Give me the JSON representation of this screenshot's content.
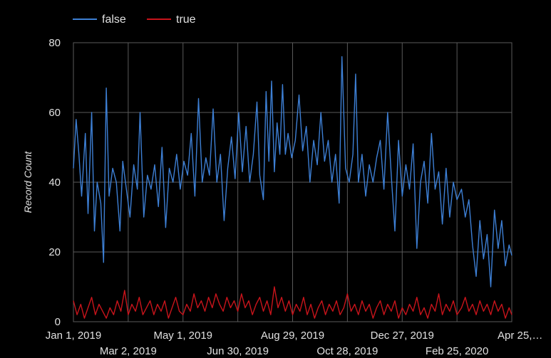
{
  "chart_data": {
    "type": "line",
    "title": "",
    "xlabel": "",
    "ylabel": "Record Count",
    "ylim": [
      0,
      80
    ],
    "yticks": [
      "0",
      "20",
      "40",
      "60",
      "80"
    ],
    "xlim": [
      "2019-01-01",
      "2020-04-25"
    ],
    "xticks": [
      {
        "date": "2019-01-01",
        "label": "Jan 1, 2019",
        "row": 0
      },
      {
        "date": "2019-03-02",
        "label": "Mar 2, 2019",
        "row": 1
      },
      {
        "date": "2019-05-01",
        "label": "May 1, 2019",
        "row": 0
      },
      {
        "date": "2019-06-30",
        "label": "Jun 30, 2019",
        "row": 1
      },
      {
        "date": "2019-08-29",
        "label": "Aug 29, 2019",
        "row": 0
      },
      {
        "date": "2019-10-28",
        "label": "Oct 28, 2019",
        "row": 1
      },
      {
        "date": "2019-12-27",
        "label": "Dec 27, 2019",
        "row": 0
      },
      {
        "date": "2020-02-25",
        "label": "Feb 25, 2020",
        "row": 1
      },
      {
        "date": "2020-04-25",
        "label": "Apr 25,…",
        "row": 0
      }
    ],
    "grid": true,
    "legend_position": "top-left",
    "series": [
      {
        "name": "false",
        "color": "#3d7fd4",
        "points": [
          [
            "2019-01-01",
            44
          ],
          [
            "2019-01-04",
            58
          ],
          [
            "2019-01-07",
            48
          ],
          [
            "2019-01-10",
            36
          ],
          [
            "2019-01-14",
            54
          ],
          [
            "2019-01-17",
            31
          ],
          [
            "2019-01-21",
            60
          ],
          [
            "2019-01-24",
            26
          ],
          [
            "2019-01-27",
            40
          ],
          [
            "2019-01-31",
            34
          ],
          [
            "2019-02-03",
            17
          ],
          [
            "2019-02-06",
            67
          ],
          [
            "2019-02-09",
            36
          ],
          [
            "2019-02-13",
            44
          ],
          [
            "2019-02-17",
            40
          ],
          [
            "2019-02-21",
            26
          ],
          [
            "2019-02-24",
            46
          ],
          [
            "2019-02-28",
            38
          ],
          [
            "2019-03-04",
            30
          ],
          [
            "2019-03-08",
            45
          ],
          [
            "2019-03-12",
            38
          ],
          [
            "2019-03-15",
            60
          ],
          [
            "2019-03-19",
            30
          ],
          [
            "2019-03-23",
            42
          ],
          [
            "2019-03-27",
            38
          ],
          [
            "2019-03-31",
            45
          ],
          [
            "2019-04-04",
            33
          ],
          [
            "2019-04-08",
            50
          ],
          [
            "2019-04-12",
            27
          ],
          [
            "2019-04-16",
            44
          ],
          [
            "2019-04-20",
            40
          ],
          [
            "2019-04-24",
            48
          ],
          [
            "2019-04-28",
            38
          ],
          [
            "2019-05-02",
            46
          ],
          [
            "2019-05-06",
            42
          ],
          [
            "2019-05-10",
            54
          ],
          [
            "2019-05-14",
            36
          ],
          [
            "2019-05-18",
            64
          ],
          [
            "2019-05-22",
            40
          ],
          [
            "2019-05-26",
            47
          ],
          [
            "2019-05-30",
            42
          ],
          [
            "2019-06-03",
            61
          ],
          [
            "2019-06-07",
            40
          ],
          [
            "2019-06-11",
            48
          ],
          [
            "2019-06-15",
            29
          ],
          [
            "2019-06-19",
            44
          ],
          [
            "2019-06-23",
            53
          ],
          [
            "2019-06-27",
            41
          ],
          [
            "2019-07-01",
            60
          ],
          [
            "2019-07-05",
            43
          ],
          [
            "2019-07-09",
            56
          ],
          [
            "2019-07-13",
            40
          ],
          [
            "2019-07-17",
            48
          ],
          [
            "2019-07-21",
            63
          ],
          [
            "2019-07-24",
            42
          ],
          [
            "2019-07-28",
            35
          ],
          [
            "2019-07-31",
            66
          ],
          [
            "2019-08-03",
            46
          ],
          [
            "2019-08-06",
            69
          ],
          [
            "2019-08-09",
            43
          ],
          [
            "2019-08-12",
            57
          ],
          [
            "2019-08-15",
            48
          ],
          [
            "2019-08-18",
            68
          ],
          [
            "2019-08-21",
            48
          ],
          [
            "2019-08-24",
            54
          ],
          [
            "2019-08-28",
            47
          ],
          [
            "2019-09-01",
            52
          ],
          [
            "2019-09-05",
            65
          ],
          [
            "2019-09-09",
            49
          ],
          [
            "2019-09-13",
            56
          ],
          [
            "2019-09-17",
            40
          ],
          [
            "2019-09-21",
            52
          ],
          [
            "2019-09-25",
            45
          ],
          [
            "2019-09-29",
            60
          ],
          [
            "2019-10-03",
            46
          ],
          [
            "2019-10-07",
            52
          ],
          [
            "2019-10-11",
            40
          ],
          [
            "2019-10-15",
            48
          ],
          [
            "2019-10-19",
            34
          ],
          [
            "2019-10-22",
            76
          ],
          [
            "2019-10-26",
            44
          ],
          [
            "2019-10-30",
            40
          ],
          [
            "2019-11-03",
            48
          ],
          [
            "2019-11-06",
            71
          ],
          [
            "2019-11-09",
            40
          ],
          [
            "2019-11-13",
            48
          ],
          [
            "2019-11-17",
            36
          ],
          [
            "2019-11-21",
            45
          ],
          [
            "2019-11-25",
            40
          ],
          [
            "2019-11-29",
            47
          ],
          [
            "2019-12-03",
            52
          ],
          [
            "2019-12-07",
            38
          ],
          [
            "2019-12-11",
            60
          ],
          [
            "2019-12-15",
            42
          ],
          [
            "2019-12-19",
            26
          ],
          [
            "2019-12-23",
            52
          ],
          [
            "2019-12-27",
            36
          ],
          [
            "2019-12-31",
            45
          ],
          [
            "2020-01-04",
            38
          ],
          [
            "2020-01-08",
            51
          ],
          [
            "2020-01-12",
            21
          ],
          [
            "2020-01-16",
            40
          ],
          [
            "2020-01-20",
            46
          ],
          [
            "2020-01-24",
            34
          ],
          [
            "2020-01-28",
            54
          ],
          [
            "2020-02-01",
            38
          ],
          [
            "2020-02-05",
            43
          ],
          [
            "2020-02-09",
            28
          ],
          [
            "2020-02-13",
            44
          ],
          [
            "2020-02-17",
            30
          ],
          [
            "2020-02-21",
            40
          ],
          [
            "2020-02-25",
            35
          ],
          [
            "2020-03-01",
            38
          ],
          [
            "2020-03-05",
            30
          ],
          [
            "2020-03-09",
            35
          ],
          [
            "2020-03-13",
            22
          ],
          [
            "2020-03-17",
            13
          ],
          [
            "2020-03-21",
            29
          ],
          [
            "2020-03-25",
            18
          ],
          [
            "2020-03-29",
            25
          ],
          [
            "2020-04-02",
            10
          ],
          [
            "2020-04-06",
            32
          ],
          [
            "2020-04-10",
            21
          ],
          [
            "2020-04-14",
            29
          ],
          [
            "2020-04-18",
            16
          ],
          [
            "2020-04-22",
            22
          ],
          [
            "2020-04-25",
            19
          ]
        ]
      },
      {
        "name": "true",
        "color": "#c8141b",
        "points": [
          [
            "2019-01-01",
            6
          ],
          [
            "2019-01-05",
            2
          ],
          [
            "2019-01-09",
            5
          ],
          [
            "2019-01-13",
            1
          ],
          [
            "2019-01-17",
            4
          ],
          [
            "2019-01-21",
            7
          ],
          [
            "2019-01-25",
            2
          ],
          [
            "2019-01-29",
            5
          ],
          [
            "2019-02-02",
            3
          ],
          [
            "2019-02-06",
            1
          ],
          [
            "2019-02-10",
            4
          ],
          [
            "2019-02-14",
            2
          ],
          [
            "2019-02-18",
            6
          ],
          [
            "2019-02-22",
            3
          ],
          [
            "2019-02-26",
            9
          ],
          [
            "2019-03-02",
            2
          ],
          [
            "2019-03-06",
            5
          ],
          [
            "2019-03-10",
            3
          ],
          [
            "2019-03-14",
            7
          ],
          [
            "2019-03-18",
            2
          ],
          [
            "2019-03-22",
            4
          ],
          [
            "2019-03-26",
            6
          ],
          [
            "2019-03-30",
            2
          ],
          [
            "2019-04-03",
            5
          ],
          [
            "2019-04-07",
            3
          ],
          [
            "2019-04-11",
            6
          ],
          [
            "2019-04-15",
            1
          ],
          [
            "2019-04-19",
            4
          ],
          [
            "2019-04-23",
            7
          ],
          [
            "2019-04-27",
            3
          ],
          [
            "2019-05-01",
            2
          ],
          [
            "2019-05-05",
            5
          ],
          [
            "2019-05-09",
            3
          ],
          [
            "2019-05-13",
            8
          ],
          [
            "2019-05-17",
            4
          ],
          [
            "2019-05-21",
            6
          ],
          [
            "2019-05-25",
            3
          ],
          [
            "2019-05-29",
            7
          ],
          [
            "2019-06-02",
            4
          ],
          [
            "2019-06-06",
            8
          ],
          [
            "2019-06-10",
            5
          ],
          [
            "2019-06-14",
            3
          ],
          [
            "2019-06-18",
            7
          ],
          [
            "2019-06-22",
            4
          ],
          [
            "2019-06-26",
            6
          ],
          [
            "2019-06-30",
            3
          ],
          [
            "2019-07-04",
            8
          ],
          [
            "2019-07-08",
            4
          ],
          [
            "2019-07-12",
            6
          ],
          [
            "2019-07-16",
            2
          ],
          [
            "2019-07-20",
            5
          ],
          [
            "2019-07-24",
            7
          ],
          [
            "2019-07-28",
            3
          ],
          [
            "2019-08-01",
            6
          ],
          [
            "2019-08-05",
            2
          ],
          [
            "2019-08-09",
            10
          ],
          [
            "2019-08-13",
            4
          ],
          [
            "2019-08-17",
            7
          ],
          [
            "2019-08-21",
            3
          ],
          [
            "2019-08-25",
            6
          ],
          [
            "2019-08-29",
            2
          ],
          [
            "2019-09-02",
            5
          ],
          [
            "2019-09-06",
            3
          ],
          [
            "2019-09-10",
            7
          ],
          [
            "2019-09-14",
            2
          ],
          [
            "2019-09-18",
            5
          ],
          [
            "2019-09-22",
            1
          ],
          [
            "2019-09-26",
            4
          ],
          [
            "2019-09-30",
            6
          ],
          [
            "2019-10-04",
            2
          ],
          [
            "2019-10-08",
            5
          ],
          [
            "2019-10-12",
            3
          ],
          [
            "2019-10-16",
            6
          ],
          [
            "2019-10-20",
            2
          ],
          [
            "2019-10-24",
            4
          ],
          [
            "2019-10-28",
            8
          ],
          [
            "2019-11-01",
            3
          ],
          [
            "2019-11-05",
            5
          ],
          [
            "2019-11-09",
            2
          ],
          [
            "2019-11-13",
            6
          ],
          [
            "2019-11-17",
            3
          ],
          [
            "2019-11-21",
            5
          ],
          [
            "2019-11-25",
            1
          ],
          [
            "2019-11-29",
            4
          ],
          [
            "2019-12-03",
            6
          ],
          [
            "2019-12-07",
            2
          ],
          [
            "2019-12-11",
            5
          ],
          [
            "2019-12-15",
            3
          ],
          [
            "2019-12-19",
            6
          ],
          [
            "2019-12-23",
            1
          ],
          [
            "2019-12-27",
            4
          ],
          [
            "2019-12-31",
            2
          ],
          [
            "2020-01-04",
            5
          ],
          [
            "2020-01-08",
            3
          ],
          [
            "2020-01-12",
            7
          ],
          [
            "2020-01-16",
            2
          ],
          [
            "2020-01-20",
            4
          ],
          [
            "2020-01-24",
            1
          ],
          [
            "2020-01-28",
            5
          ],
          [
            "2020-02-01",
            3
          ],
          [
            "2020-02-05",
            8
          ],
          [
            "2020-02-09",
            2
          ],
          [
            "2020-02-13",
            5
          ],
          [
            "2020-02-17",
            3
          ],
          [
            "2020-02-21",
            6
          ],
          [
            "2020-02-25",
            2
          ],
          [
            "2020-03-01",
            4
          ],
          [
            "2020-03-05",
            7
          ],
          [
            "2020-03-09",
            3
          ],
          [
            "2020-03-13",
            5
          ],
          [
            "2020-03-17",
            2
          ],
          [
            "2020-03-21",
            6
          ],
          [
            "2020-03-25",
            3
          ],
          [
            "2020-03-29",
            5
          ],
          [
            "2020-04-02",
            2
          ],
          [
            "2020-04-06",
            6
          ],
          [
            "2020-04-10",
            3
          ],
          [
            "2020-04-14",
            5
          ],
          [
            "2020-04-18",
            1
          ],
          [
            "2020-04-22",
            4
          ],
          [
            "2020-04-25",
            2
          ]
        ]
      }
    ]
  }
}
